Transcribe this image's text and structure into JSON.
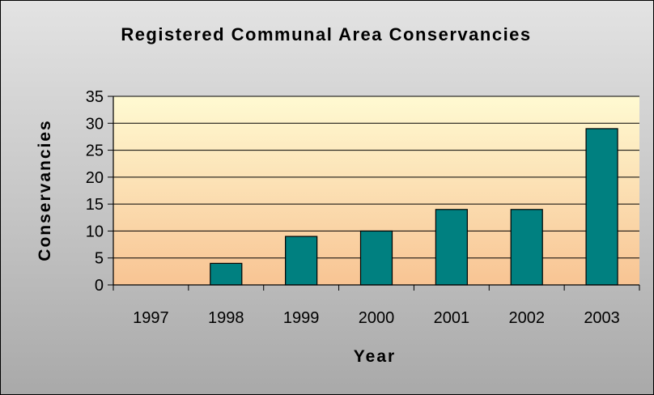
{
  "chart_data": {
    "type": "bar",
    "title": "Registered Communal Area Conservancies",
    "xlabel": "Year",
    "ylabel": "Conservancies",
    "categories": [
      "1997",
      "1998",
      "1999",
      "2000",
      "2001",
      "2002",
      "2003"
    ],
    "values": [
      0,
      4,
      9,
      10,
      14,
      14,
      29
    ],
    "ylim": [
      0,
      35
    ],
    "yticks": [
      0,
      5,
      10,
      15,
      20,
      25,
      30,
      35
    ],
    "grid": true,
    "legend": "none",
    "bar_color": "#008080",
    "plot_background_top": "#fffad2",
    "plot_background_bottom": "#f8c493"
  }
}
